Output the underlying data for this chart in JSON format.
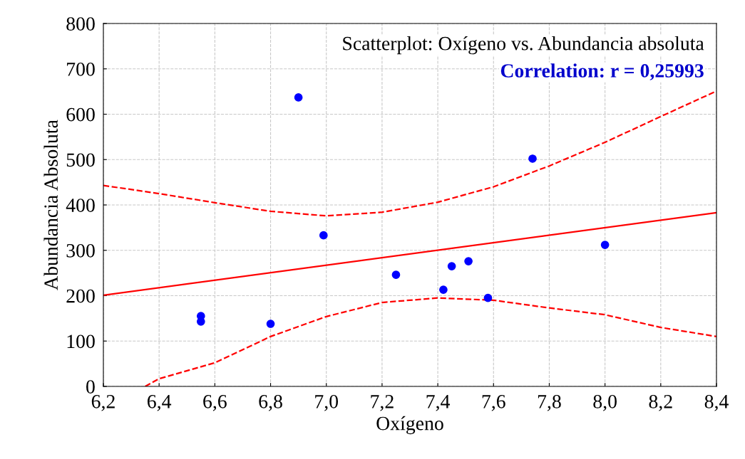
{
  "chart_data": {
    "type": "scatter",
    "xlabel": "Oxígeno",
    "ylabel": "Abundancia Absoluta",
    "annotations": [
      "Scatterplot: Oxígeno vs. Abundancia absoluta",
      "Correlation: r = 0,25993"
    ],
    "series": [
      {
        "color": "#0000ff",
        "marker": "circle",
        "x": [
          6.55,
          6.55,
          6.8,
          6.9,
          6.99,
          7.25,
          7.42,
          7.45,
          7.51,
          7.58,
          7.74,
          8.0
        ],
        "values": [
          155,
          143,
          138,
          637,
          333,
          246,
          213,
          265,
          276,
          195,
          502,
          312
        ]
      },
      {
        "type": "line",
        "color": "#ff0000",
        "line_style": "solid",
        "x": [
          6.2,
          8.4
        ],
        "values": [
          201,
          383
        ]
      },
      {
        "type": "line",
        "color": "#ff0000",
        "line_style": "dashed",
        "x": [
          6.2,
          6.4,
          6.6,
          6.8,
          7.0,
          7.2,
          7.4,
          7.6,
          7.8,
          8.0,
          8.2,
          8.4
        ],
        "values": [
          443,
          425,
          405,
          386,
          376,
          384,
          406,
          440,
          486,
          538,
          595,
          651
        ]
      },
      {
        "type": "line",
        "color": "#ff0000",
        "line_style": "dashed",
        "x": [
          6.35,
          6.4,
          6.6,
          6.8,
          7.0,
          7.2,
          7.4,
          7.6,
          7.8,
          8.0,
          8.2,
          8.4
        ],
        "values": [
          0,
          17,
          52,
          110,
          154,
          185,
          195,
          190,
          173,
          158,
          130,
          110
        ]
      }
    ],
    "xlim": [
      6.2,
      8.4
    ],
    "ylim": [
      0,
      800
    ],
    "xticks": [
      {
        "value": 6.2,
        "label": "6,2"
      },
      {
        "value": 6.4,
        "label": "6,4"
      },
      {
        "value": 6.6,
        "label": "6,6"
      },
      {
        "value": 6.8,
        "label": "6,8"
      },
      {
        "value": 7.0,
        "label": "7,0"
      },
      {
        "value": 7.2,
        "label": "7,2"
      },
      {
        "value": 7.4,
        "label": "7,4"
      },
      {
        "value": 7.6,
        "label": "7,6"
      },
      {
        "value": 7.8,
        "label": "7,8"
      },
      {
        "value": 8.0,
        "label": "8,0"
      },
      {
        "value": 8.2,
        "label": "8,2"
      },
      {
        "value": 8.4,
        "label": "8,4"
      }
    ],
    "yticks": [
      0,
      100,
      200,
      300,
      400,
      500,
      600,
      700,
      800
    ],
    "grid": true
  }
}
